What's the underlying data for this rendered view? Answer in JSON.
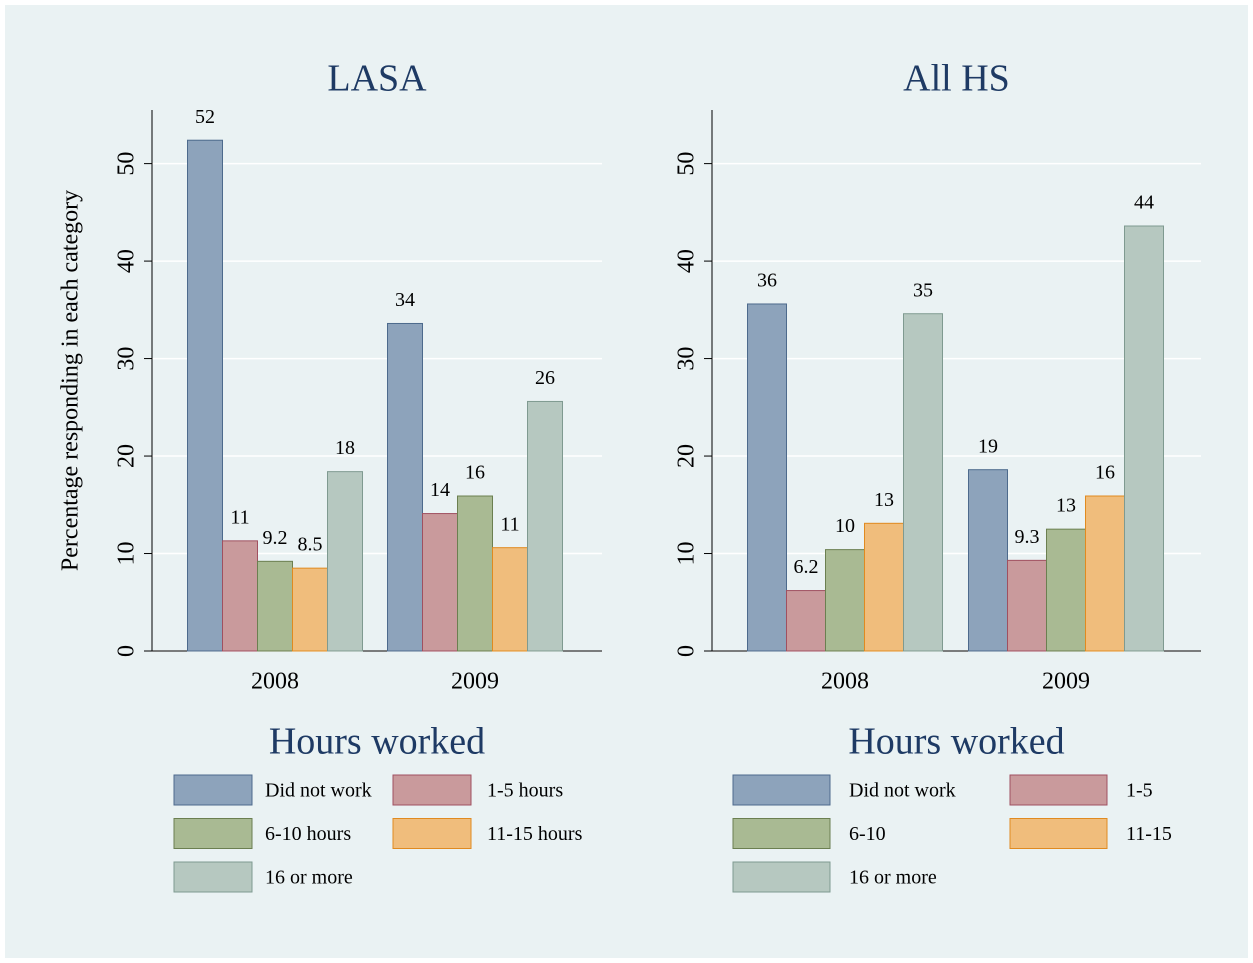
{
  "chart_data": [
    {
      "type": "bar",
      "title": "LASA",
      "ylabel": "Percentage responding in each category",
      "categories": [
        "2008",
        "2009"
      ],
      "ylim": [
        0,
        55.5
      ],
      "yticks": [
        0,
        10,
        20,
        30,
        40,
        50
      ],
      "grid": true,
      "legend_title": "Hours worked",
      "series": [
        {
          "name": "Did not work",
          "color": "#8da3bb",
          "values": [
            52.4,
            33.6
          ],
          "value_labels": [
            "52",
            "34"
          ]
        },
        {
          "name": "1-5 hours",
          "color": "#c99a9c",
          "values": [
            11.3,
            14.1
          ],
          "value_labels": [
            "11",
            "14"
          ]
        },
        {
          "name": "6-10 hours",
          "color": "#a9ba93",
          "values": [
            9.2,
            15.9
          ],
          "value_labels": [
            "9.2",
            "16"
          ]
        },
        {
          "name": "11-15 hours",
          "color": "#f0bd7c",
          "values": [
            8.5,
            10.6
          ],
          "value_labels": [
            "8.5",
            "11"
          ]
        },
        {
          "name": "16 or more",
          "color": "#b6c8c0",
          "values": [
            18.4,
            25.6
          ],
          "value_labels": [
            "18",
            "26"
          ]
        }
      ]
    },
    {
      "type": "bar",
      "title": "All HS",
      "categories": [
        "2008",
        "2009"
      ],
      "ylim": [
        0,
        55.5
      ],
      "yticks": [
        0,
        10,
        20,
        30,
        40,
        50
      ],
      "grid": true,
      "legend_title": "Hours worked",
      "series": [
        {
          "name": "Did not work",
          "color": "#8da3bb",
          "values": [
            35.6,
            18.6
          ],
          "value_labels": [
            "36",
            "19"
          ]
        },
        {
          "name": "1-5",
          "color": "#c99a9c",
          "values": [
            6.2,
            9.3
          ],
          "value_labels": [
            "6.2",
            "9.3"
          ]
        },
        {
          "name": "6-10",
          "color": "#a9ba93",
          "values": [
            10.4,
            12.5
          ],
          "value_labels": [
            "10",
            "13"
          ]
        },
        {
          "name": "11-15",
          "color": "#f0bd7c",
          "values": [
            13.1,
            15.9
          ],
          "value_labels": [
            "13",
            "16"
          ]
        },
        {
          "name": "16 or more",
          "color": "#b6c8c0",
          "values": [
            34.6,
            43.6
          ],
          "value_labels": [
            "35",
            "44"
          ]
        }
      ]
    }
  ]
}
